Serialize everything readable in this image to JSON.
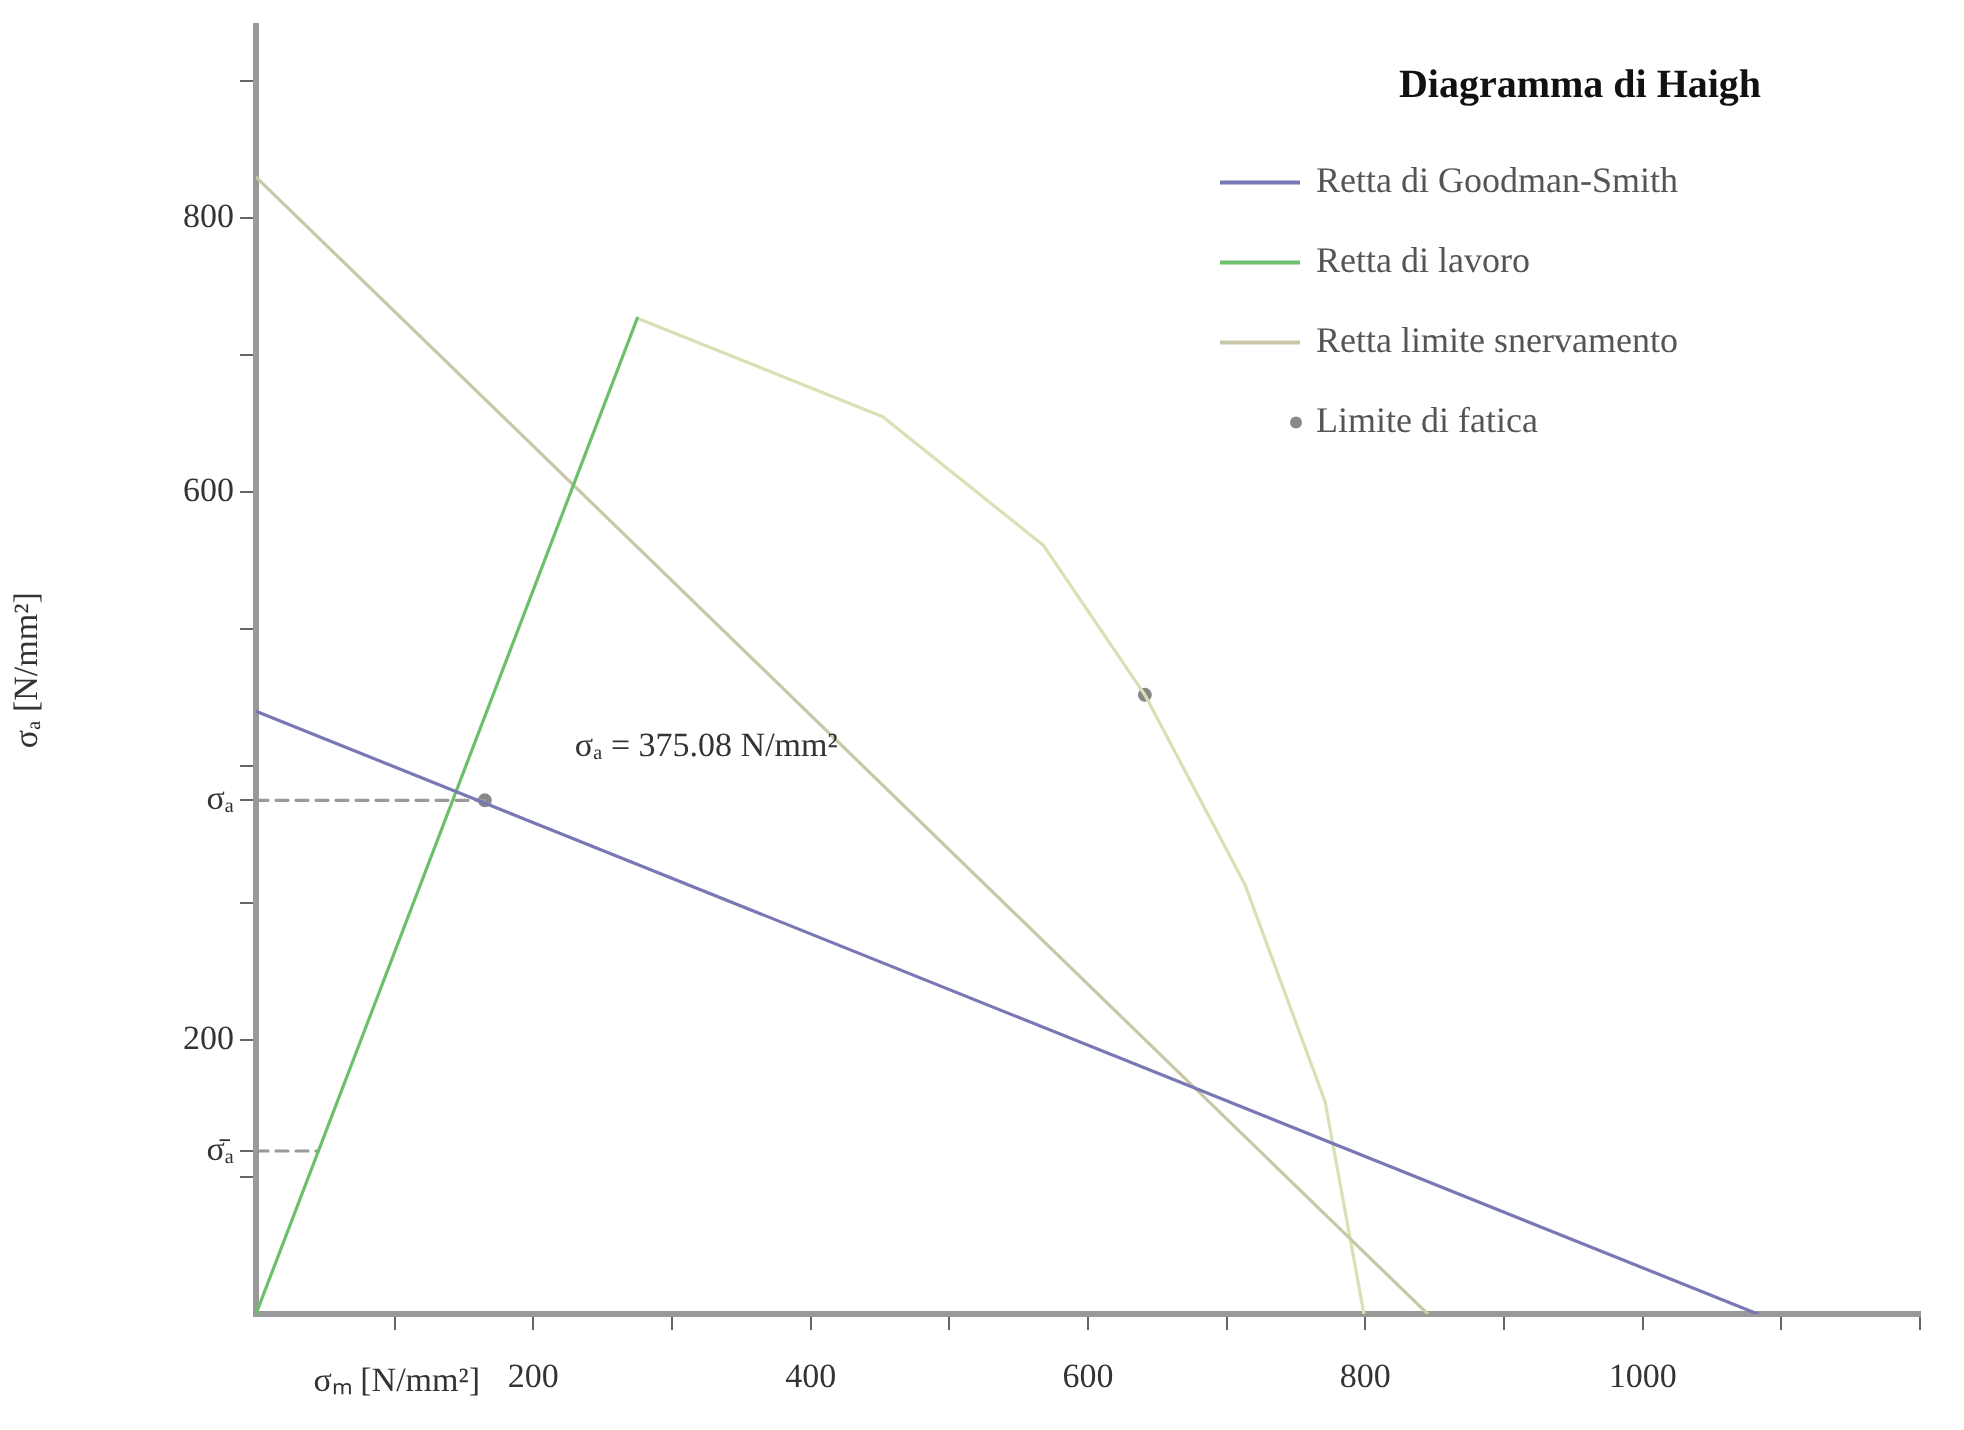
{
  "chart_data": {
    "type": "line",
    "title": "Diagramma di Haigh",
    "xlabel": "σₘ [N/mm²]",
    "ylabel": "σₐ [N/mm²]",
    "xlim": [
      0,
      1200
    ],
    "ylim": [
      0,
      940
    ],
    "xticks": [
      {
        "value": 100,
        "label": null
      },
      200,
      {
        "value": 300,
        "label": null
      },
      400,
      {
        "value": 500,
        "label": null
      },
      600,
      {
        "value": 700,
        "label": null
      },
      800,
      {
        "value": 900,
        "label": null
      },
      1000,
      {
        "value": 1100,
        "label": null
      },
      {
        "value": 1200,
        "label": null
      }
    ],
    "yticks": [
      {
        "value": 100,
        "label": null
      },
      {
        "value": 119,
        "label": "σ̄ₐ"
      },
      200,
      {
        "value": 300,
        "label": null
      },
      {
        "value": 375,
        "label": "σₐ"
      },
      {
        "value": 400,
        "label": null
      },
      {
        "value": 500,
        "label": null
      },
      600,
      {
        "value": 700,
        "label": null
      },
      800,
      {
        "value": 900,
        "label": null
      }
    ],
    "series": [
      {
        "name": "Retta di Goodman-Smith",
        "color": "#7878b4",
        "x": [
          0,
          1083
        ],
        "values": [
          440,
          0
        ]
      },
      {
        "name": "Retta di lavoro",
        "color": "#6cbf6c",
        "x": [
          0,
          275
        ],
        "values": [
          0,
          727
        ]
      },
      {
        "name": "Retta limite snervamento",
        "color": "#c8c8a8",
        "x": [
          0,
          845
        ],
        "values": [
          830,
          0
        ]
      },
      {
        "color": "#d6e2b4",
        "x": [
          275,
          452,
          568,
          641,
          713,
          771,
          799
        ],
        "values": [
          727,
          655,
          561,
          452,
          314,
          155,
          0
        ]
      },
      {
        "color": "#999999",
        "line_style": "dashed",
        "x": [
          0,
          165
        ],
        "values": [
          375,
          375
        ]
      },
      {
        "color": "#999999",
        "line_style": "dashed",
        "x": [
          0,
          45
        ],
        "values": [
          119,
          119
        ]
      },
      {
        "name": "Limite di fatica",
        "type": "scatter",
        "color": "#888888",
        "marker": "circle",
        "x": [
          165,
          641
        ],
        "values": [
          375,
          452
        ]
      }
    ],
    "annotations": [
      {
        "text": "σₐ = 375.08 N/mm²",
        "x": 165,
        "y": 375
      }
    ],
    "legend": "top right",
    "grid": false
  }
}
